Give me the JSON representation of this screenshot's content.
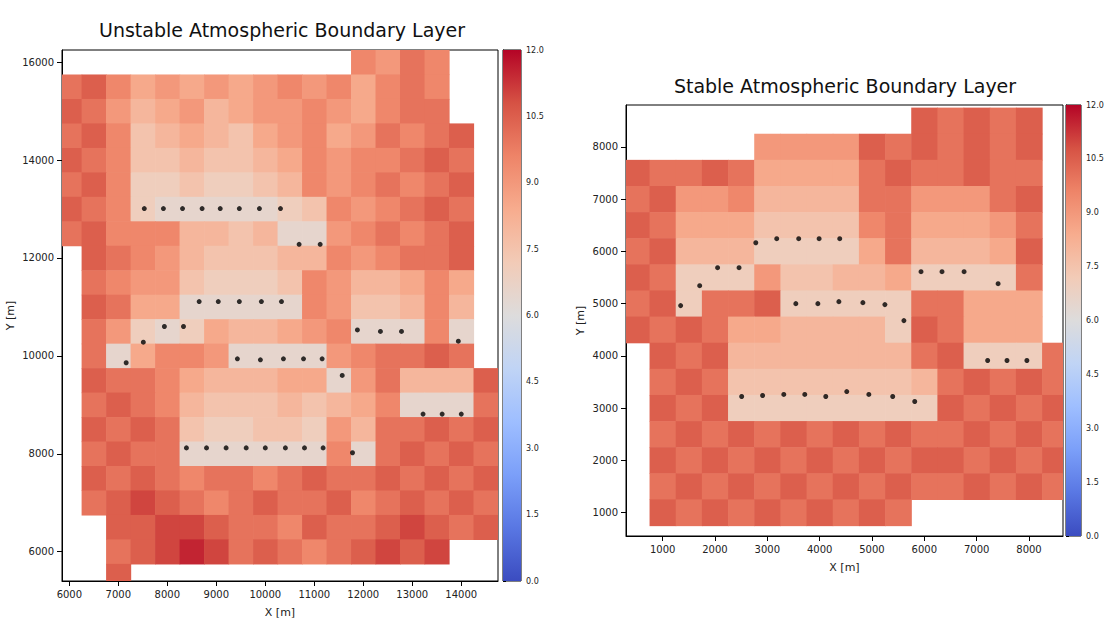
{
  "chart_data": [
    {
      "type": "heatmap",
      "title": "Unstable Atmospheric Boundary Layer",
      "x_label": "X [m]",
      "y_label": "Y [m]",
      "xlim": [
        5850,
        14750
      ],
      "ylim": [
        5400,
        16250
      ],
      "xticks": [
        6000,
        7000,
        8000,
        9000,
        10000,
        11000,
        12000,
        13000,
        14000
      ],
      "yticks": [
        6000,
        8000,
        10000,
        12000,
        14000,
        16000
      ],
      "grid": false,
      "x": [
        6000,
        6500,
        7000,
        7500,
        8000,
        8500,
        9000,
        9500,
        10000,
        10500,
        11000,
        11500,
        12000,
        12500,
        13000,
        13500,
        14000,
        14500
      ],
      "y": [
        16000,
        15500,
        15000,
        14500,
        14000,
        13500,
        13000,
        12500,
        12000,
        11500,
        11000,
        10500,
        10000,
        9500,
        9000,
        8500,
        8000,
        7500,
        7000,
        6500,
        6000,
        5500
      ],
      "cells": [
        [
          null,
          null,
          null,
          null,
          null,
          null,
          null,
          null,
          null,
          null,
          null,
          null,
          9.5,
          9,
          10,
          9.5,
          null,
          null
        ],
        [
          10,
          10.5,
          9.5,
          8.5,
          9,
          8.5,
          9,
          8.5,
          9,
          9.5,
          9,
          9.5,
          8.5,
          9.5,
          10,
          9.5,
          null,
          null
        ],
        [
          10.5,
          10,
          9,
          8,
          8.5,
          9,
          8,
          8.5,
          9,
          9,
          9.5,
          9,
          8.5,
          9.5,
          10,
          10,
          null,
          null
        ],
        [
          10,
          10.5,
          9.5,
          7.5,
          8,
          8.5,
          8,
          7.5,
          8.5,
          9,
          9.5,
          8.5,
          9,
          10,
          9.5,
          10,
          10.5,
          null
        ],
        [
          10.5,
          10,
          9.5,
          7.5,
          7.5,
          8,
          7.5,
          7.5,
          8,
          8.5,
          9.5,
          9,
          9.5,
          9.5,
          10,
          10.5,
          10,
          null
        ],
        [
          10,
          10.5,
          9.5,
          7,
          7,
          7.5,
          7,
          7,
          7.5,
          8,
          9.5,
          9,
          9.5,
          10,
          9.5,
          10,
          10.5,
          null
        ],
        [
          10.5,
          10,
          9.5,
          7,
          6.5,
          6.5,
          6.5,
          6.5,
          6.5,
          7,
          7.5,
          9.5,
          9,
          9.5,
          10,
          10.5,
          10,
          null
        ],
        [
          10,
          10.5,
          9.5,
          9.5,
          9.5,
          8,
          8,
          7.5,
          8,
          6.5,
          6.5,
          9,
          9.5,
          10,
          9.5,
          10,
          10.5,
          null
        ],
        [
          null,
          10.5,
          10,
          9.5,
          9,
          8,
          7.5,
          7.5,
          7.5,
          8,
          8,
          9.5,
          9,
          9.5,
          10,
          10,
          10.5,
          null
        ],
        [
          null,
          10,
          9.5,
          9,
          9,
          7.5,
          7,
          7,
          7,
          7.5,
          9.5,
          9,
          8,
          8,
          8.5,
          9.5,
          8.5,
          null
        ],
        [
          null,
          10.5,
          10,
          8.5,
          8.5,
          6.5,
          6.5,
          6.5,
          6.5,
          6.5,
          9.5,
          9,
          7.5,
          7.5,
          8,
          9.5,
          8,
          null
        ],
        [
          null,
          10,
          9,
          7,
          6.5,
          7,
          8.5,
          8,
          8,
          8.5,
          9,
          9.5,
          6.5,
          6.5,
          6.5,
          9.5,
          6.5,
          null
        ],
        [
          null,
          10,
          6.5,
          8.5,
          9.5,
          9.5,
          9,
          6.5,
          6.5,
          6.5,
          6.5,
          9,
          9.5,
          10,
          10,
          10.5,
          10,
          null
        ],
        [
          null,
          10.5,
          10,
          10,
          9.5,
          8.5,
          8,
          8,
          8,
          8.5,
          8.5,
          6.5,
          9,
          10,
          8,
          8,
          8,
          10.5
        ],
        [
          null,
          10,
          10.5,
          10,
          9.5,
          8,
          7.5,
          7.5,
          7.5,
          8,
          7.5,
          8,
          8.5,
          9.5,
          6.5,
          6.5,
          6.5,
          10
        ],
        [
          null,
          10.5,
          10,
          10.5,
          10,
          7.5,
          7,
          7,
          7.5,
          7.5,
          7,
          9,
          8,
          10,
          10,
          10.5,
          10,
          10.5
        ],
        [
          null,
          10,
          10.5,
          10,
          10,
          6.5,
          6.5,
          6.5,
          6.5,
          6.5,
          6.5,
          9.5,
          6.5,
          10,
          10.5,
          10,
          10.5,
          10
        ],
        [
          null,
          10.5,
          10,
          10.5,
          10,
          9.5,
          10,
          10,
          9.5,
          10,
          10.5,
          10,
          10,
          10.5,
          10,
          10.5,
          10,
          10.5
        ],
        [
          null,
          10,
          10.5,
          11,
          10.5,
          10,
          9.5,
          10,
          10.5,
          10,
          10,
          10.5,
          9.5,
          10,
          10.5,
          10,
          10.5,
          10
        ],
        [
          null,
          null,
          10.5,
          10.5,
          11,
          11,
          10.5,
          10,
          10,
          9.5,
          10.5,
          10,
          10,
          10.5,
          11,
          10.5,
          10,
          10.5
        ],
        [
          null,
          null,
          10,
          10.5,
          11,
          11.5,
          11,
          10,
          10.5,
          10,
          9.5,
          10,
          10.5,
          11,
          10.5,
          11,
          null,
          null
        ],
        [
          null,
          null,
          10.5,
          null,
          null,
          null,
          null,
          null,
          null,
          null,
          null,
          null,
          null,
          null,
          null,
          null,
          null,
          null
        ]
      ],
      "colorbar": {
        "range": [
          0,
          12
        ],
        "ticks": [
          {
            "value": 0,
            "label": "0.0"
          },
          {
            "value": 1.5,
            "label": "1.5"
          },
          {
            "value": 3,
            "label": "3.0"
          },
          {
            "value": 4.5,
            "label": "4.5"
          },
          {
            "value": 6,
            "label": "6.0"
          },
          {
            "value": 7.5,
            "label": "7.5"
          },
          {
            "value": 9,
            "label": "9.0"
          },
          {
            "value": 10.5,
            "label": "10.5"
          },
          {
            "value": 12,
            "label": "12.0"
          }
        ]
      },
      "series": [
        {
          "type": "scatter",
          "color": "#000000",
          "marker": "circle",
          "values": [
            [
              7530,
              13010
            ],
            [
              7920,
              13010
            ],
            [
              8310,
              13010
            ],
            [
              8710,
              13010
            ],
            [
              9080,
              13010
            ],
            [
              9470,
              13010
            ],
            [
              9880,
              13010
            ],
            [
              10310,
              13010
            ],
            [
              10690,
              12280
            ],
            [
              11120,
              12280
            ],
            [
              8650,
              11110
            ],
            [
              9040,
              11110
            ],
            [
              9470,
              11110
            ],
            [
              9920,
              11110
            ],
            [
              10330,
              11110
            ],
            [
              7940,
              10600
            ],
            [
              8330,
              10600
            ],
            [
              7510,
              10280
            ],
            [
              7160,
              9860
            ],
            [
              11880,
              10530
            ],
            [
              12350,
              10500
            ],
            [
              12780,
              10500
            ],
            [
              13940,
              10300
            ],
            [
              9430,
              9940
            ],
            [
              9900,
              9920
            ],
            [
              10370,
              9940
            ],
            [
              10780,
              9940
            ],
            [
              11160,
              9940
            ],
            [
              11570,
              9600
            ],
            [
              13220,
              8810
            ],
            [
              13610,
              8810
            ],
            [
              14000,
              8810
            ],
            [
              8390,
              8120
            ],
            [
              8800,
              8120
            ],
            [
              9200,
              8120
            ],
            [
              9610,
              8120
            ],
            [
              10000,
              8120
            ],
            [
              10410,
              8120
            ],
            [
              10800,
              8120
            ],
            [
              11180,
              8120
            ],
            [
              11780,
              8020
            ]
          ]
        }
      ]
    },
    {
      "type": "heatmap",
      "title": "Stable Atmospheric Boundary Layer",
      "x_label": "X [m]",
      "y_label": "Y [m]",
      "xlim": [
        300,
        8650
      ],
      "ylim": [
        550,
        8800
      ],
      "xticks": [
        1000,
        2000,
        3000,
        4000,
        5000,
        6000,
        7000,
        8000
      ],
      "yticks": [
        1000,
        2000,
        3000,
        4000,
        5000,
        6000,
        7000,
        8000
      ],
      "grid": false,
      "x": [
        500,
        1000,
        1500,
        2000,
        2500,
        3000,
        3500,
        4000,
        4500,
        5000,
        5500,
        6000,
        6500,
        7000,
        7500,
        8000,
        8500
      ],
      "y": [
        8500,
        8000,
        7500,
        7000,
        6500,
        6000,
        5500,
        5000,
        4500,
        4000,
        3500,
        3000,
        2500,
        2000,
        1500,
        1000
      ],
      "cells": [
        [
          null,
          null,
          null,
          null,
          null,
          null,
          null,
          null,
          null,
          null,
          null,
          10.5,
          10,
          10.5,
          10,
          10.5,
          null
        ],
        [
          null,
          null,
          null,
          null,
          null,
          9,
          9,
          9,
          9,
          10.5,
          10,
          10.5,
          10,
          10.5,
          10,
          10.5,
          null
        ],
        [
          10.5,
          10,
          10,
          10.5,
          10,
          8.5,
          8.5,
          8.5,
          8.5,
          10,
          10.5,
          10,
          10,
          10.5,
          10,
          10,
          null
        ],
        [
          10,
          10.5,
          9,
          9,
          9.5,
          8,
          8,
          8,
          8,
          10,
          10,
          9,
          9,
          9,
          10,
          10.5,
          null
        ],
        [
          10.5,
          10,
          8.5,
          8.5,
          8.5,
          7.5,
          7.5,
          7.5,
          7.5,
          9.5,
          10,
          8.5,
          8.5,
          8.5,
          9,
          10,
          null
        ],
        [
          10,
          10.5,
          8,
          8,
          8,
          7,
          7,
          7,
          7,
          8.5,
          10,
          8,
          8,
          8,
          8.5,
          10.5,
          null
        ],
        [
          10.5,
          10,
          7,
          7,
          7,
          9,
          7.5,
          7.5,
          8,
          8,
          8.5,
          7,
          7,
          7,
          7,
          10,
          null
        ],
        [
          10,
          10.5,
          7,
          10,
          10,
          10.5,
          7,
          7,
          7,
          7,
          7,
          10,
          10,
          8.5,
          8.5,
          8.5,
          null
        ],
        [
          10.5,
          10,
          10.5,
          10,
          8.5,
          8.5,
          8,
          8,
          8,
          8,
          7,
          10.5,
          10,
          8.5,
          8.5,
          8.5,
          null
        ],
        [
          null,
          10.5,
          10,
          10.5,
          8,
          8,
          8,
          8,
          8,
          8,
          8,
          10,
          10.5,
          7,
          7,
          7,
          10
        ],
        [
          null,
          10,
          10.5,
          10,
          7.5,
          7.5,
          7.5,
          7.5,
          7.5,
          7.5,
          7.5,
          8,
          10,
          10.5,
          10,
          10.5,
          10
        ],
        [
          null,
          10.5,
          10,
          10.5,
          7,
          7,
          7,
          7,
          7,
          7,
          7,
          7,
          10.5,
          10,
          10.5,
          10,
          10.5
        ],
        [
          null,
          10,
          10.5,
          10,
          10.5,
          10,
          10.5,
          10,
          10.5,
          10,
          10.5,
          10,
          10,
          10.5,
          10,
          10.5,
          10
        ],
        [
          null,
          10.5,
          10,
          10.5,
          10,
          10.5,
          10,
          10.5,
          10,
          10.5,
          10,
          10.5,
          10.5,
          10,
          10.5,
          10,
          10.5
        ],
        [
          null,
          10,
          10.5,
          10,
          10.5,
          10,
          10.5,
          10,
          10.5,
          10,
          10.5,
          10,
          10,
          10.5,
          10,
          10.5,
          10
        ],
        [
          null,
          10.5,
          10,
          10.5,
          10,
          10.5,
          10,
          10.5,
          10,
          10.5,
          10,
          null,
          null,
          null,
          null,
          null,
          null
        ]
      ],
      "colorbar": {
        "range": [
          0,
          12
        ],
        "ticks": [
          {
            "value": 0,
            "label": "0.0"
          },
          {
            "value": 1.5,
            "label": "1.5"
          },
          {
            "value": 3,
            "label": "3.0"
          },
          {
            "value": 4.5,
            "label": "4.5"
          },
          {
            "value": 6,
            "label": "6.0"
          },
          {
            "value": 7.5,
            "label": "7.5"
          },
          {
            "value": 9,
            "label": "9.0"
          },
          {
            "value": 10.5,
            "label": "10.5"
          },
          {
            "value": 12,
            "label": "12.0"
          }
        ]
      },
      "series": [
        {
          "type": "scatter",
          "color": "#000000",
          "marker": "circle",
          "values": [
            [
              1344,
              4960
            ],
            [
              1708,
              5342
            ],
            [
              2050,
              5686
            ],
            [
              2460,
              5686
            ],
            [
              2780,
              6164
            ],
            [
              3180,
              6241
            ],
            [
              3600,
              6241
            ],
            [
              3990,
              6241
            ],
            [
              4384,
              6241
            ],
            [
              5937,
              5610
            ],
            [
              6338,
              5610
            ],
            [
              6760,
              5610
            ],
            [
              7410,
              5380
            ],
            [
              3545,
              4998
            ],
            [
              3966,
              4998
            ],
            [
              4367,
              5036
            ],
            [
              4826,
              5017
            ],
            [
              5247,
              4979
            ],
            [
              5610,
              4673
            ],
            [
              2510,
              3220
            ],
            [
              2910,
              3240
            ],
            [
              3315,
              3260
            ],
            [
              3716,
              3260
            ],
            [
              4117,
              3220
            ],
            [
              4518,
              3315
            ],
            [
              4940,
              3260
            ],
            [
              5396,
              3220
            ],
            [
              5817,
              3125
            ],
            [
              7210,
              3910
            ],
            [
              7580,
              3910
            ],
            [
              7960,
              3910
            ]
          ]
        }
      ]
    }
  ]
}
